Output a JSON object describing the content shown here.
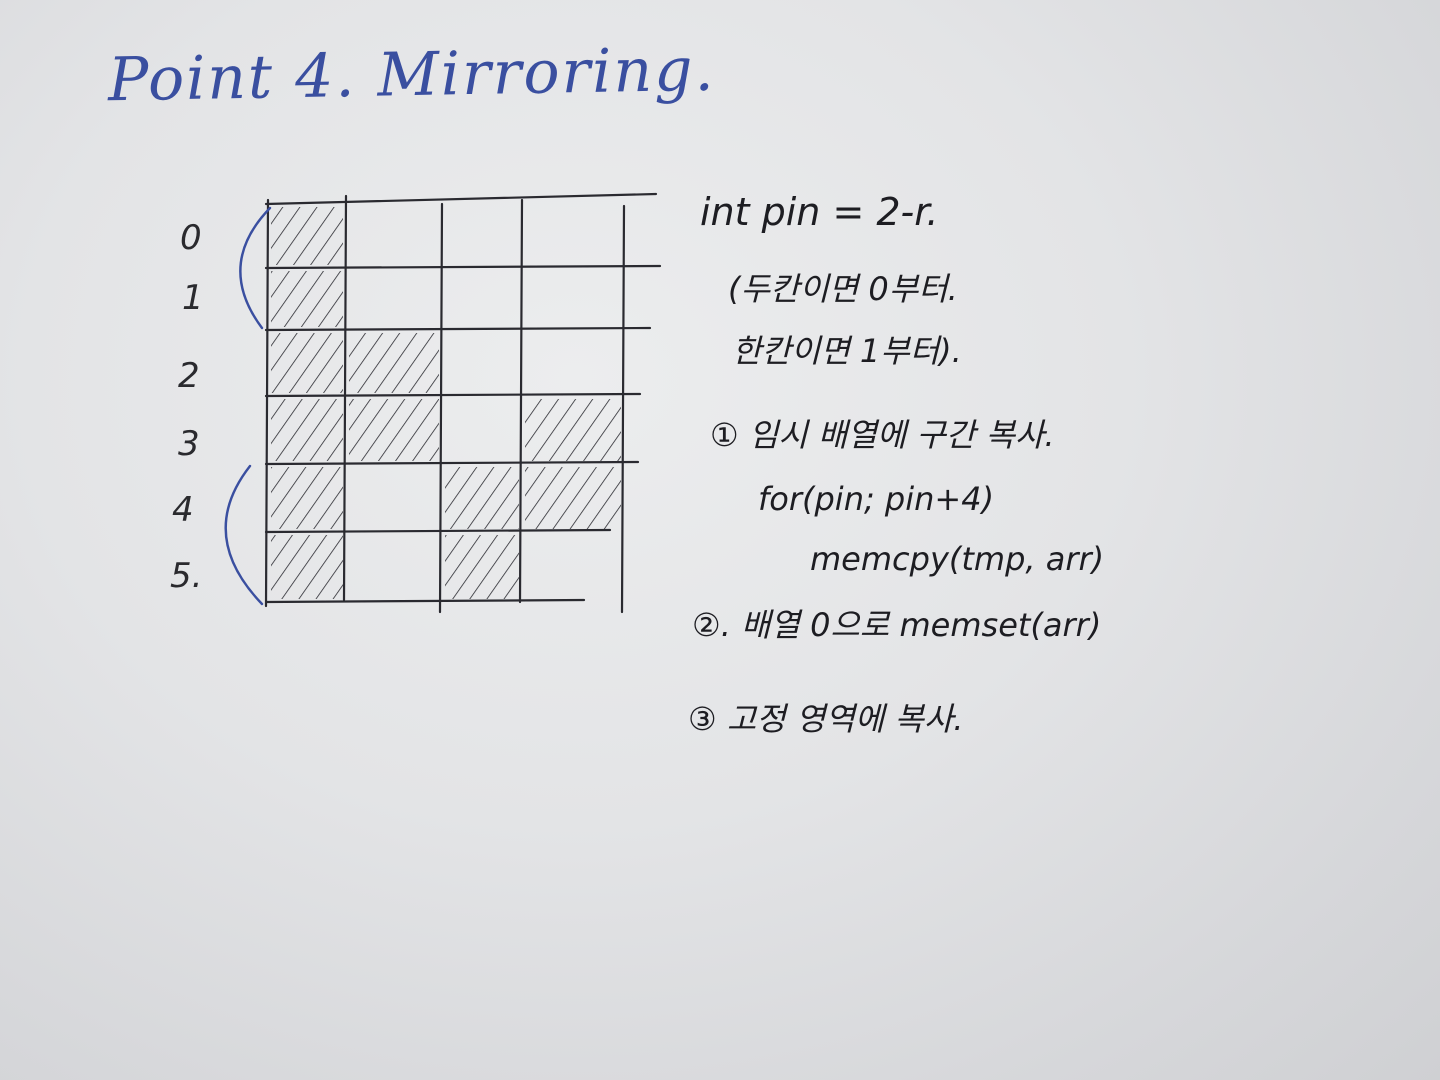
{
  "title": "Point 4. Mirroring.",
  "row_labels": [
    "0",
    "1",
    "2",
    "3",
    "4",
    "5."
  ],
  "notes": {
    "line1": "int pin = 2-r.",
    "line2": "(두칸이면 0부터.",
    "line3": "한칸이면 1부터).",
    "step1": "① 임시 배열에 구간 복사.",
    "step1_code1": "for(pin;   pin+4)",
    "step1_code2": "memcpy(tmp, arr)",
    "step2": "②. 배열 0으로  memset(arr)",
    "step3": "③  고정 영역에  복사."
  },
  "grid": {
    "rows": 6,
    "cols": 4,
    "shaded_cells": [
      [
        0,
        0
      ],
      [
        1,
        0
      ],
      [
        2,
        0
      ],
      [
        2,
        1
      ],
      [
        3,
        0
      ],
      [
        3,
        1
      ],
      [
        3,
        3
      ],
      [
        4,
        0
      ],
      [
        4,
        2
      ],
      [
        4,
        3
      ],
      [
        5,
        0
      ],
      [
        5,
        2
      ]
    ]
  },
  "colors": {
    "ink_black": "#1d1d22",
    "ink_blue": "#3a4fa0",
    "paper": "#e4e5e7"
  }
}
